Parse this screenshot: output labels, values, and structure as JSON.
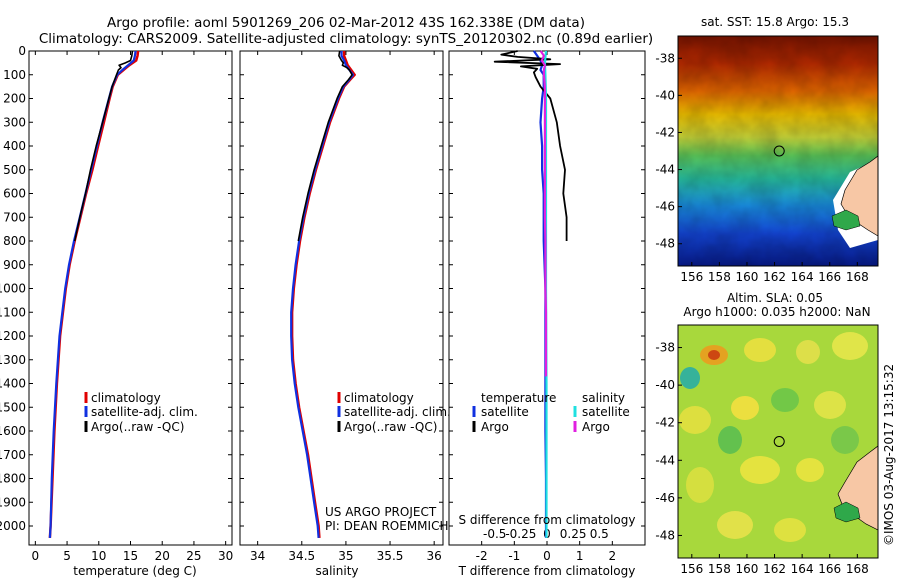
{
  "header": {
    "title_line1": "Argo profile: aoml 5901269_206 02-Mar-2012 43S 162.338E (DM data)",
    "title_line2": "Climatology: CARS2009. Satellite-adjusted climatology: synTS_20120302.nc (0.89d earlier)"
  },
  "colors": {
    "climatology": "#e00000",
    "satellite": "#1030e0",
    "argo": "#000000",
    "salinity_satellite": "#20e0e0",
    "salinity_argo": "#e020e0"
  },
  "chart_data": [
    {
      "type": "line",
      "name": "temperature-profile",
      "xlabel": "temperature (deg C)",
      "xlim": [
        -1,
        31
      ],
      "ylim": [
        0,
        2080
      ],
      "xticks": [
        0,
        5,
        10,
        15,
        20,
        25,
        30
      ],
      "yticks": [
        0,
        100,
        200,
        300,
        400,
        500,
        600,
        700,
        800,
        900,
        1000,
        1100,
        1200,
        1300,
        1400,
        1500,
        1600,
        1700,
        1800,
        1900,
        2000
      ],
      "legend": [
        "climatology",
        "satellite-adj. clim.",
        "Argo(..raw -QC)"
      ],
      "series": [
        {
          "name": "climatology",
          "color_key": "climatology",
          "depth": [
            0,
            20,
            40,
            60,
            80,
            100,
            150,
            200,
            300,
            400,
            500,
            600,
            700,
            800,
            900,
            1000,
            1200,
            1400,
            1600,
            1800,
            2000,
            2050
          ],
          "values": [
            16.2,
            16.1,
            15.9,
            14.8,
            13.9,
            13.0,
            12.2,
            11.7,
            10.8,
            9.9,
            9.0,
            8.0,
            7.1,
            6.2,
            5.4,
            4.8,
            3.9,
            3.4,
            3.0,
            2.7,
            2.4,
            2.3
          ]
        },
        {
          "name": "satellite-adj. clim.",
          "color_key": "satellite",
          "depth": [
            0,
            20,
            40,
            60,
            80,
            100,
            150,
            200,
            300,
            400,
            500,
            600,
            700,
            800,
            900,
            1000,
            1200,
            1400,
            1600,
            1800,
            2000,
            2050
          ],
          "values": [
            15.8,
            15.7,
            15.5,
            14.6,
            13.7,
            12.9,
            12.1,
            11.6,
            10.6,
            9.7,
            8.8,
            7.9,
            7.0,
            6.1,
            5.3,
            4.7,
            3.8,
            3.3,
            2.9,
            2.6,
            2.4,
            2.3
          ]
        },
        {
          "name": "Argo(..raw -QC)",
          "color_key": "argo",
          "depth": [
            0,
            20,
            40,
            50,
            60,
            70,
            80,
            100,
            150,
            200,
            300,
            400,
            500,
            600,
            700,
            800
          ],
          "values": [
            15.3,
            15.2,
            15.0,
            14.2,
            13.2,
            13.5,
            13.1,
            12.8,
            12.1,
            11.6,
            10.6,
            9.6,
            8.7,
            7.9,
            7.0,
            6.2
          ]
        }
      ]
    },
    {
      "type": "line",
      "name": "salinity-profile",
      "xlabel": "salinity",
      "xlim": [
        33.8,
        36.1
      ],
      "ylim": [
        0,
        2080
      ],
      "xticks": [
        34,
        34.5,
        35,
        35.5,
        36
      ],
      "legend": [
        "climatology",
        "satellite-adj. clim.",
        "Argo(..raw -QC)"
      ],
      "annotations": [
        "US ARGO PROJECT",
        "PI: DEAN ROEMMICH"
      ],
      "series": [
        {
          "name": "climatology",
          "color_key": "climatology",
          "depth": [
            0,
            20,
            40,
            60,
            80,
            100,
            120,
            150,
            200,
            300,
            400,
            500,
            600,
            700,
            800,
            900,
            1000,
            1100,
            1200,
            1300,
            1400,
            1500,
            1600,
            1700,
            1800,
            1900,
            2000,
            2050
          ],
          "values": [
            34.98,
            34.98,
            35.0,
            35.02,
            35.06,
            35.1,
            35.05,
            34.98,
            34.92,
            34.82,
            34.74,
            34.66,
            34.59,
            34.53,
            34.48,
            34.44,
            34.41,
            34.39,
            34.39,
            34.4,
            34.43,
            34.47,
            34.52,
            34.57,
            34.61,
            34.65,
            34.69,
            34.7
          ]
        },
        {
          "name": "satellite-adj. clim.",
          "color_key": "satellite",
          "depth": [
            0,
            20,
            40,
            60,
            80,
            100,
            120,
            150,
            200,
            300,
            400,
            500,
            600,
            700,
            800,
            900,
            1000,
            1100,
            1200,
            1300,
            1400,
            1500,
            1600,
            1700,
            1800,
            1900,
            2000,
            2050
          ],
          "values": [
            34.95,
            34.95,
            34.98,
            35.0,
            35.04,
            35.08,
            35.04,
            34.97,
            34.91,
            34.81,
            34.73,
            34.65,
            34.58,
            34.52,
            34.47,
            34.43,
            34.4,
            34.38,
            34.38,
            34.39,
            34.42,
            34.46,
            34.51,
            34.56,
            34.6,
            34.64,
            34.68,
            34.69
          ]
        },
        {
          "name": "Argo(..raw -QC)",
          "color_key": "argo",
          "depth": [
            0,
            20,
            40,
            50,
            60,
            70,
            80,
            100,
            120,
            150,
            200,
            300,
            400,
            500,
            600,
            700,
            800
          ],
          "values": [
            34.93,
            34.92,
            34.95,
            34.97,
            34.96,
            35.01,
            35.04,
            35.07,
            35.03,
            34.96,
            34.9,
            34.8,
            34.72,
            34.64,
            34.57,
            34.51,
            34.46
          ]
        }
      ]
    },
    {
      "type": "line",
      "name": "difference-from-climatology",
      "xlabel": "T difference from climatology",
      "xlabel_top": "S difference from climatology",
      "xlim": [
        -3,
        3
      ],
      "ylim": [
        0,
        2080
      ],
      "xticks": [
        -2,
        -1,
        0,
        1,
        2
      ],
      "xtick_labels": [
        "-2",
        "-1",
        "0",
        "1",
        "2"
      ],
      "top_ticks": [
        -0.5,
        -0.25,
        0,
        0.25,
        0.5
      ],
      "top_tick_labels": [
        "-0.5",
        "-0.25",
        "0",
        "0.25",
        "0.5"
      ],
      "legend_titles": [
        "temperature",
        "salinity"
      ],
      "legend": [
        "satellite",
        "Argo",
        "satellite",
        "Argo"
      ],
      "series": [
        {
          "name": "T satellite",
          "color_key": "satellite",
          "depth": [
            0,
            20,
            40,
            60,
            80,
            100,
            150,
            200,
            300,
            400,
            500,
            600,
            800,
            1000,
            1200,
            1400,
            1600,
            1800,
            2050
          ],
          "values": [
            -0.4,
            -0.3,
            -0.2,
            -0.15,
            -0.2,
            -0.1,
            -0.1,
            -0.15,
            -0.2,
            -0.15,
            -0.15,
            -0.1,
            -0.1,
            -0.05,
            -0.05,
            -0.05,
            -0.05,
            -0.03,
            -0.03
          ]
        },
        {
          "name": "T Argo",
          "color_key": "argo",
          "depth": [
            0,
            15,
            25,
            35,
            45,
            55,
            65,
            75,
            90,
            110,
            150,
            200,
            300,
            400,
            500,
            600,
            700,
            800
          ],
          "values": [
            -0.9,
            -1.4,
            -0.9,
            0.1,
            -1.6,
            0.4,
            -0.8,
            -0.3,
            -0.4,
            -0.35,
            -0.2,
            0.1,
            0.3,
            0.4,
            0.55,
            0.5,
            0.6,
            0.6
          ]
        },
        {
          "name": "S satellite",
          "color_key": "salinity_satellite",
          "depth": [
            0,
            50,
            100,
            200,
            400,
            600,
            800,
            1000,
            1400,
            1800,
            2050
          ],
          "values": [
            -0.01,
            -0.02,
            -0.015,
            -0.01,
            -0.01,
            -0.01,
            -0.01,
            -0.01,
            -0.005,
            -0.005,
            -0.005
          ]
        },
        {
          "name": "S Argo",
          "color_key": "salinity_argo",
          "depth": [
            0,
            20,
            40,
            60,
            80,
            100,
            150,
            200,
            300,
            400,
            500,
            600,
            700,
            800,
            900,
            1000,
            1100,
            1200,
            1300,
            1370
          ],
          "values": [
            -0.06,
            -0.03,
            -0.05,
            -0.02,
            -0.03,
            -0.03,
            -0.02,
            -0.02,
            -0.02,
            -0.02,
            -0.02,
            -0.02,
            -0.02,
            -0.015,
            -0.015,
            -0.015,
            -0.01,
            -0.01,
            -0.01,
            -0.01
          ]
        }
      ]
    },
    {
      "type": "heatmap",
      "name": "sst-map",
      "title": "sat. SST: 15.8 Argo: 15.3",
      "xlim": [
        155,
        169.5
      ],
      "ylim": [
        -49.2,
        -36.8
      ],
      "xticks": [
        156,
        158,
        160,
        162,
        164,
        166,
        168
      ],
      "yticks": [
        -38,
        -40,
        -42,
        -44,
        -46,
        -48
      ],
      "marker": {
        "lon": 162.338,
        "lat": -43.0
      }
    },
    {
      "type": "heatmap",
      "name": "sla-map",
      "title_line1": "Altim. SLA: 0.05",
      "title_line2": "Argo h1000: 0.035 h2000: NaN",
      "xlim": [
        155,
        169.5
      ],
      "ylim": [
        -49.2,
        -36.8
      ],
      "xticks": [
        156,
        158,
        160,
        162,
        164,
        166,
        168
      ],
      "yticks": [
        -38,
        -40,
        -42,
        -44,
        -46,
        -48
      ],
      "marker": {
        "lon": 162.338,
        "lat": -43.0
      }
    }
  ],
  "credit": "©IMOS 03-Aug-2017 13:15:32"
}
